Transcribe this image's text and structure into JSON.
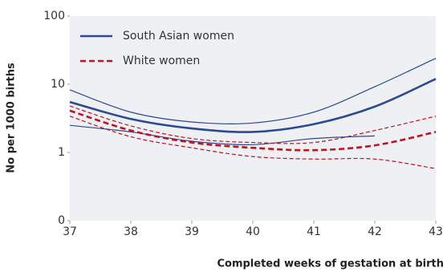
{
  "chart_data": {
    "type": "line",
    "ylabel": "No per 1000 births",
    "xlabel": "Completed weeks of gestation at birth",
    "x": [
      37,
      38,
      39,
      40,
      41,
      42,
      43
    ],
    "xlim": [
      37,
      43
    ],
    "xticks": [
      37,
      38,
      39,
      40,
      41,
      42,
      43
    ],
    "ylim": [
      0.1,
      100
    ],
    "log_y": true,
    "yticks": [
      {
        "value": 0.1,
        "label": "0"
      },
      1,
      10,
      100
    ],
    "legend": "upper left",
    "background": "#eef0f4",
    "series": [
      {
        "name": "South Asian women",
        "color": "#2a4a93",
        "dashed": false,
        "values": [
          5.5,
          3.1,
          2.25,
          2.0,
          2.6,
          4.7,
          12
        ],
        "upper": [
          8.3,
          3.9,
          2.8,
          2.7,
          3.9,
          9.2,
          24
        ],
        "lower": [
          2.5,
          2.0,
          1.46,
          1.3,
          1.6,
          1.75,
          null
        ]
      },
      {
        "name": "White women",
        "color": "#c0121f",
        "dashed": true,
        "values": [
          4.1,
          2.1,
          1.4,
          1.17,
          1.08,
          1.27,
          2.0
        ],
        "upper": [
          4.8,
          2.45,
          1.6,
          1.4,
          1.4,
          2.1,
          3.4
        ],
        "lower": [
          3.4,
          1.7,
          1.17,
          0.87,
          0.8,
          0.8,
          0.58
        ]
      }
    ]
  }
}
